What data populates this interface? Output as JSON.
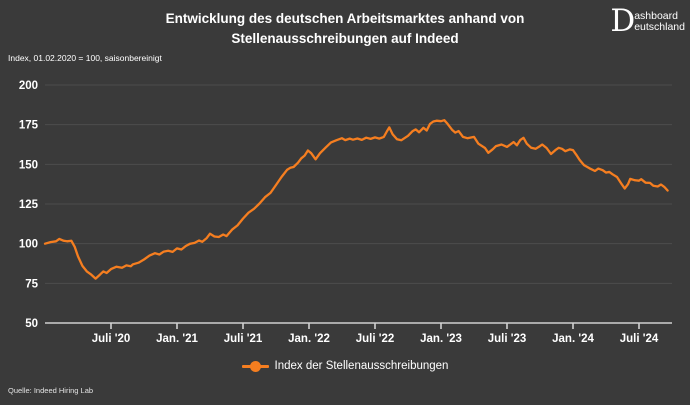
{
  "header": {
    "title_line1": "Entwicklung des deutschen Arbeitsmarktes anhand von",
    "title_line2": "Stellenausschreibungen auf Indeed",
    "logo": {
      "initial": "D",
      "word_top": "ashboard",
      "word_bottom": "eutschland"
    }
  },
  "subtitle": "Index, 01.02.2020 = 100, saisonbereinigt",
  "legend": {
    "label": "Index der Stellenausschreibungen"
  },
  "source": "Quelle: Indeed Hiring Lab",
  "colors": {
    "background": "#3a3a3a",
    "line": "#f57e20",
    "grid": "#4c4c4c",
    "axis": "#d0d0d0",
    "text": "#ffffff"
  },
  "chart_data": {
    "type": "line",
    "title": "Entwicklung des deutschen Arbeitsmarktes anhand von Stellenausschreibungen auf Indeed",
    "subtitle": "Index, 01.02.2020 = 100, saisonbereinigt",
    "x_unit": "months_since_2020_01",
    "x_range": [
      0,
      57.2
    ],
    "y_range": [
      50,
      200
    ],
    "grid": "horizontal-only",
    "legend_position": "bottom-center",
    "y_ticks": [
      50,
      75,
      100,
      125,
      150,
      175,
      200
    ],
    "x_ticks": [
      {
        "m": 6,
        "label": "Juli '20"
      },
      {
        "m": 12,
        "label": "Jan. '21"
      },
      {
        "m": 18,
        "label": "Juli '21"
      },
      {
        "m": 24,
        "label": "Jan. '22"
      },
      {
        "m": 30,
        "label": "Juli '22"
      },
      {
        "m": 36,
        "label": "Jan. '23"
      },
      {
        "m": 42,
        "label": "Juli '23"
      },
      {
        "m": 48,
        "label": "Jan. '24"
      },
      {
        "m": 54,
        "label": "Juli '24"
      }
    ],
    "series": [
      {
        "name": "Index der Stellenausschreibungen",
        "color": "#f57e20",
        "points": [
          [
            0,
            100
          ],
          [
            0.5,
            101
          ],
          [
            1,
            101.5
          ],
          [
            1.3,
            103
          ],
          [
            1.7,
            101.8
          ],
          [
            2,
            101.5
          ],
          [
            2.4,
            101.8
          ],
          [
            2.7,
            98
          ],
          [
            3,
            92
          ],
          [
            3.4,
            86
          ],
          [
            3.8,
            82.5
          ],
          [
            4.2,
            80.5
          ],
          [
            4.6,
            78
          ],
          [
            5,
            80.5
          ],
          [
            5.3,
            82.5
          ],
          [
            5.6,
            81.5
          ],
          [
            6,
            84
          ],
          [
            6.5,
            85.5
          ],
          [
            7,
            84.8
          ],
          [
            7.4,
            86.3
          ],
          [
            7.8,
            85.8
          ],
          [
            8,
            87
          ],
          [
            8.5,
            88
          ],
          [
            9,
            90
          ],
          [
            9.5,
            92.5
          ],
          [
            10,
            94
          ],
          [
            10.4,
            93.2
          ],
          [
            10.8,
            95
          ],
          [
            11.2,
            95.5
          ],
          [
            11.6,
            94.8
          ],
          [
            12,
            97
          ],
          [
            12.4,
            96.3
          ],
          [
            12.8,
            98.5
          ],
          [
            13.2,
            100
          ],
          [
            13.6,
            100.5
          ],
          [
            14,
            102
          ],
          [
            14.3,
            101.2
          ],
          [
            14.7,
            103.5
          ],
          [
            15,
            106.3
          ],
          [
            15.4,
            104.5
          ],
          [
            15.8,
            104.2
          ],
          [
            16.2,
            105.8
          ],
          [
            16.5,
            104.8
          ],
          [
            17,
            108.8
          ],
          [
            17.5,
            111.5
          ],
          [
            18,
            115.8
          ],
          [
            18.5,
            119.5
          ],
          [
            19,
            122
          ],
          [
            19.5,
            125.3
          ],
          [
            20,
            129.3
          ],
          [
            20.5,
            132
          ],
          [
            21,
            137
          ],
          [
            21.5,
            142
          ],
          [
            22,
            146.5
          ],
          [
            22.3,
            147.8
          ],
          [
            22.6,
            148.3
          ],
          [
            23,
            151
          ],
          [
            23.3,
            153.8
          ],
          [
            23.6,
            155.5
          ],
          [
            23.9,
            158.7
          ],
          [
            24.2,
            157
          ],
          [
            24.6,
            153.2
          ],
          [
            25,
            157
          ],
          [
            25.5,
            160.5
          ],
          [
            26,
            163.8
          ],
          [
            26.5,
            165.2
          ],
          [
            27,
            166.5
          ],
          [
            27.3,
            165.3
          ],
          [
            27.7,
            166.2
          ],
          [
            28,
            165.5
          ],
          [
            28.4,
            166.3
          ],
          [
            28.8,
            165.4
          ],
          [
            29.2,
            166.8
          ],
          [
            29.6,
            166
          ],
          [
            30,
            167
          ],
          [
            30.4,
            166.2
          ],
          [
            30.8,
            167.3
          ],
          [
            31.1,
            171
          ],
          [
            31.3,
            173.3
          ],
          [
            31.6,
            169
          ],
          [
            32,
            165.8
          ],
          [
            32.4,
            165.2
          ],
          [
            33,
            168
          ],
          [
            33.4,
            170.8
          ],
          [
            33.7,
            172
          ],
          [
            34,
            170.2
          ],
          [
            34.4,
            173
          ],
          [
            34.7,
            171.3
          ],
          [
            35,
            175.5
          ],
          [
            35.3,
            177
          ],
          [
            35.6,
            177.5
          ],
          [
            36,
            177.2
          ],
          [
            36.3,
            177.8
          ],
          [
            36.6,
            175.5
          ],
          [
            37,
            171.8
          ],
          [
            37.3,
            170
          ],
          [
            37.6,
            171
          ],
          [
            38,
            167.3
          ],
          [
            38.4,
            166.5
          ],
          [
            39,
            167.3
          ],
          [
            39.4,
            163
          ],
          [
            40,
            160.3
          ],
          [
            40.3,
            157.3
          ],
          [
            40.7,
            159.5
          ],
          [
            41,
            161.5
          ],
          [
            41.5,
            162.5
          ],
          [
            42,
            161
          ],
          [
            42.3,
            162.5
          ],
          [
            42.6,
            164
          ],
          [
            42.9,
            162
          ],
          [
            43.2,
            165.3
          ],
          [
            43.5,
            166.7
          ],
          [
            43.8,
            163
          ],
          [
            44.2,
            160.4
          ],
          [
            44.6,
            159.8
          ],
          [
            45,
            161.5
          ],
          [
            45.2,
            162.5
          ],
          [
            45.6,
            160.3
          ],
          [
            46,
            156.5
          ],
          [
            46.4,
            159
          ],
          [
            46.7,
            160.4
          ],
          [
            47,
            159.8
          ],
          [
            47.3,
            158.3
          ],
          [
            47.7,
            159.4
          ],
          [
            48,
            159
          ],
          [
            48.3,
            156
          ],
          [
            48.6,
            152.8
          ],
          [
            49,
            149.5
          ],
          [
            49.5,
            147.5
          ],
          [
            50,
            145.8
          ],
          [
            50.3,
            147.3
          ],
          [
            50.7,
            146.3
          ],
          [
            51,
            144.8
          ],
          [
            51.3,
            145.2
          ],
          [
            51.6,
            143.7
          ],
          [
            52,
            142
          ],
          [
            52.4,
            137.8
          ],
          [
            52.7,
            134.8
          ],
          [
            53,
            137.5
          ],
          [
            53.2,
            140.8
          ],
          [
            53.6,
            140
          ],
          [
            54,
            139.7
          ],
          [
            54.2,
            140.6
          ],
          [
            54.6,
            138.4
          ],
          [
            55,
            138.3
          ],
          [
            55.3,
            136.5
          ],
          [
            55.7,
            136
          ],
          [
            56,
            137.3
          ],
          [
            56.3,
            135.8
          ],
          [
            56.6,
            133.5
          ]
        ]
      }
    ]
  }
}
